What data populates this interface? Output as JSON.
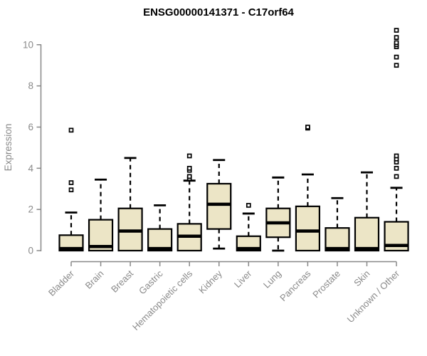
{
  "chart_data": {
    "type": "box",
    "title": "ENSG00000141371 - C17orf64",
    "ylabel": "Expression",
    "xlabel": "",
    "ylim": [
      0,
      10.8
    ],
    "yticks": [
      0,
      2,
      4,
      6,
      8,
      10
    ],
    "grid": false,
    "legend": false,
    "categories": [
      "Bladder",
      "Brain",
      "Breast",
      "Gastric",
      "Hematopoietic cells",
      "Kidney",
      "Liver",
      "Lung",
      "Pancreas",
      "Prostate",
      "Skin",
      "Unknown / Other"
    ],
    "boxes": [
      {
        "category": "Bladder",
        "whisker_low": 0,
        "q1": 0,
        "median": 0.1,
        "q3": 0.75,
        "whisker_high": 1.85,
        "outliers": [
          2.95,
          3.3,
          5.85
        ]
      },
      {
        "category": "Brain",
        "whisker_low": 0,
        "q1": 0,
        "median": 0.2,
        "q3": 1.5,
        "whisker_high": 3.45,
        "outliers": []
      },
      {
        "category": "Breast",
        "whisker_low": 0,
        "q1": 0,
        "median": 0.95,
        "q3": 2.05,
        "whisker_high": 4.5,
        "outliers": []
      },
      {
        "category": "Gastric",
        "whisker_low": 0,
        "q1": 0,
        "median": 0.1,
        "q3": 1.05,
        "whisker_high": 2.2,
        "outliers": []
      },
      {
        "category": "Hematopoietic cells",
        "whisker_low": 0,
        "q1": 0,
        "median": 0.7,
        "q3": 1.3,
        "whisker_high": 3.4,
        "outliers": [
          3.5,
          3.6,
          3.9,
          4.0,
          4.6
        ]
      },
      {
        "category": "Kidney",
        "whisker_low": 0.1,
        "q1": 1.05,
        "median": 2.25,
        "q3": 3.25,
        "whisker_high": 4.4,
        "outliers": []
      },
      {
        "category": "Liver",
        "whisker_low": 0,
        "q1": 0,
        "median": 0.1,
        "q3": 0.7,
        "whisker_high": 1.8,
        "outliers": [
          2.2
        ]
      },
      {
        "category": "Lung",
        "whisker_low": 0,
        "q1": 0.65,
        "median": 1.35,
        "q3": 2.05,
        "whisker_high": 3.55,
        "outliers": []
      },
      {
        "category": "Pancreas",
        "whisker_low": 0,
        "q1": 0,
        "median": 0.95,
        "q3": 2.15,
        "whisker_high": 3.7,
        "outliers": [
          5.95,
          6.0
        ]
      },
      {
        "category": "Prostate",
        "whisker_low": 0,
        "q1": 0,
        "median": 0.1,
        "q3": 1.1,
        "whisker_high": 2.55,
        "outliers": []
      },
      {
        "category": "Skin",
        "whisker_low": 0,
        "q1": 0,
        "median": 0.1,
        "q3": 1.6,
        "whisker_high": 3.8,
        "outliers": []
      },
      {
        "category": "Unknown / Other",
        "whisker_low": 0,
        "q1": 0,
        "median": 0.25,
        "q3": 1.4,
        "whisker_high": 3.05,
        "outliers": [
          3.6,
          4.0,
          4.3,
          4.45,
          4.6,
          9.0,
          9.4,
          9.9,
          10.0,
          10.1,
          10.35,
          10.7
        ]
      }
    ],
    "colors": {
      "box_fill": "#ece5c6",
      "box_border": "#000000",
      "median": "#000000",
      "whisker": "#000000",
      "outlier_fill": "#ffffff",
      "axis": "#888888",
      "tick_label": "#8a8a8a",
      "title": "#000000",
      "background": "#ffffff"
    }
  }
}
